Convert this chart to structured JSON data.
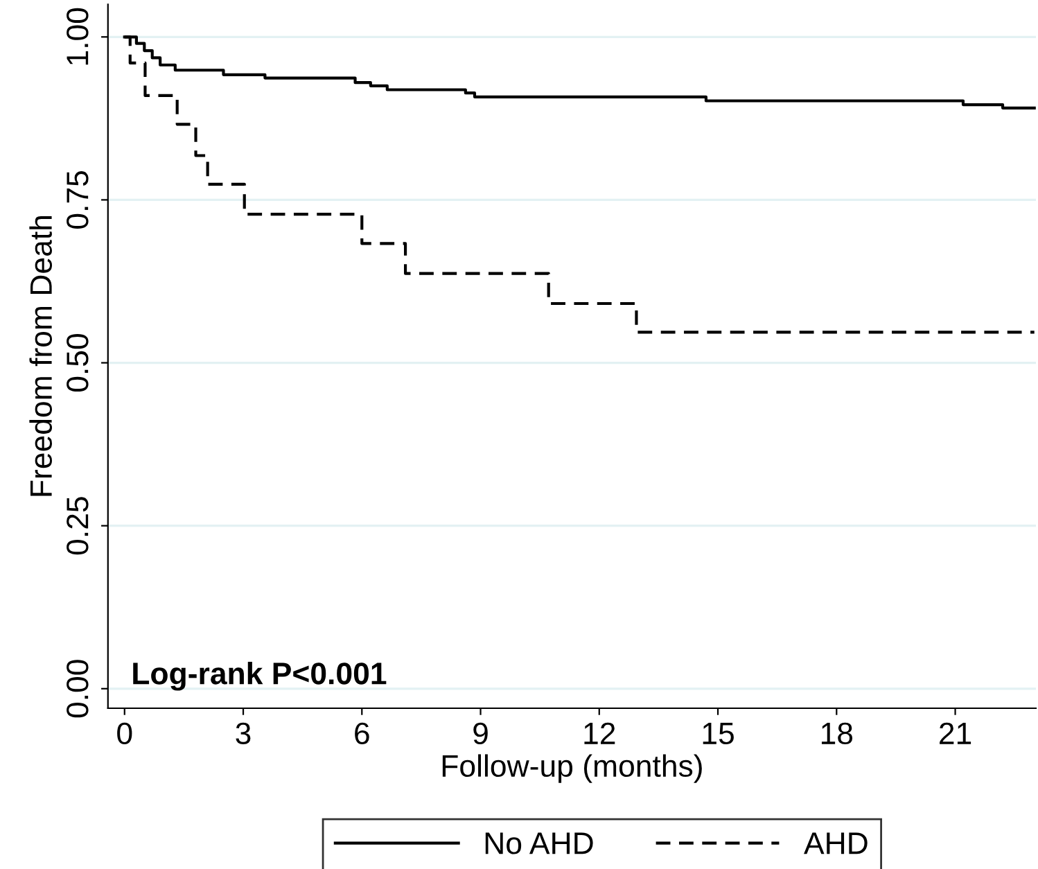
{
  "chart_data": {
    "type": "step",
    "xlabel": "Follow-up (months)",
    "ylabel": "Freedom from Death",
    "xlim": [
      -0.42,
      23.04
    ],
    "ylim": [
      -0.03,
      1.05
    ],
    "xticks": [
      0,
      3,
      6,
      9,
      12,
      15,
      18,
      21
    ],
    "yticks": [
      {
        "value": 0,
        "label": "0.00"
      },
      {
        "value": 0.25,
        "label": "0.25"
      },
      {
        "value": 0.5,
        "label": "0.50"
      },
      {
        "value": 0.75,
        "label": "0.75"
      },
      {
        "value": 1,
        "label": "1.00"
      }
    ],
    "grid": "y",
    "legend": "bottom",
    "marker": "none",
    "annotations": [
      "Log-rank P<0.001"
    ],
    "series": [
      {
        "name": "No AHD",
        "color": "#000000",
        "line_style": "solid",
        "x": [
          0,
          0.3,
          0.5,
          0.7,
          0.9,
          1.28,
          2.5,
          3.55,
          5.83,
          6.22,
          6.64,
          8.62,
          8.85,
          14.7,
          21.2,
          22.2,
          23.0
        ],
        "values": [
          1.0,
          0.99,
          0.979,
          0.968,
          0.957,
          0.949,
          0.942,
          0.937,
          0.93,
          0.925,
          0.919,
          0.914,
          0.908,
          0.902,
          0.896,
          0.891,
          0.891
        ]
      },
      {
        "name": "AHD",
        "color": "#000000",
        "line_style": "dashed",
        "x": [
          0,
          0.14,
          0.52,
          1.33,
          1.8,
          2.1,
          3.03,
          6.0,
          7.1,
          10.72,
          12.94,
          23.0
        ],
        "values": [
          1.0,
          0.96,
          0.91,
          0.866,
          0.818,
          0.774,
          0.728,
          0.683,
          0.637,
          0.591,
          0.547,
          0.547
        ]
      }
    ]
  }
}
